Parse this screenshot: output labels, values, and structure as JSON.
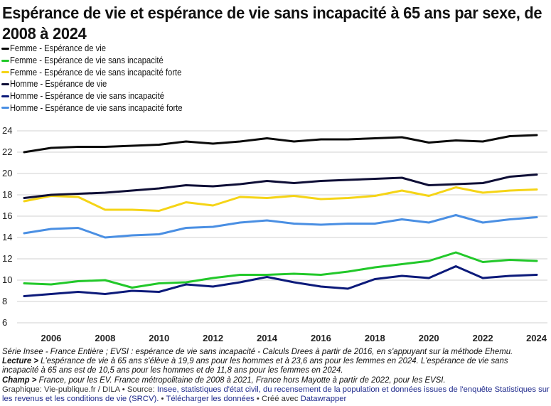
{
  "title": "Espérance de vie et espérance de vie sans incapacité à 65 ans par sexe, de 2008 à 2024",
  "legend": [
    {
      "label": "Femme - Espérance de vie",
      "color": "#0b0b0b"
    },
    {
      "label": "Femme - Espérance de vie sans incapacité",
      "color": "#22c82a"
    },
    {
      "label": "Femme - Espérance de vie sans incapacité forte",
      "color": "#f5d416"
    },
    {
      "label": "Homme - Espérance de vie",
      "color": "#0e0e36"
    },
    {
      "label": "Homme - Espérance de vie sans incapacité",
      "color": "#0c1a7a"
    },
    {
      "label": "Homme - Espérance de vie sans incapacité forte",
      "color": "#4a8fe3"
    }
  ],
  "chart_data": {
    "type": "line",
    "title": "Espérance de vie et espérance de vie sans incapacité à 65 ans par sexe, de 2008 à 2024",
    "xlabel": "",
    "ylabel": "",
    "x": [
      2005,
      2006,
      2007,
      2008,
      2009,
      2010,
      2011,
      2012,
      2013,
      2014,
      2015,
      2016,
      2017,
      2018,
      2019,
      2020,
      2021,
      2022,
      2023,
      2024
    ],
    "xticks": [
      "2006",
      "2008",
      "2010",
      "2012",
      "2014",
      "2016",
      "2018",
      "2020",
      "2022",
      "2024"
    ],
    "xtick_values": [
      2006,
      2008,
      2010,
      2012,
      2014,
      2016,
      2018,
      2020,
      2022,
      2024
    ],
    "yticks": [
      "24",
      "22",
      "20",
      "18",
      "16",
      "14",
      "12",
      "10",
      "8",
      "6"
    ],
    "ytick_values": [
      24,
      22,
      20,
      18,
      16,
      14,
      12,
      10,
      8,
      6
    ],
    "ylim": [
      6,
      24
    ],
    "xlim": [
      2005,
      2024
    ],
    "grid": true,
    "legend_position": "top-left",
    "series": [
      {
        "name": "Femme - Espérance de vie",
        "color": "#0b0b0b",
        "values": [
          22.0,
          22.4,
          22.5,
          22.5,
          22.6,
          22.7,
          23.0,
          22.8,
          23.0,
          23.3,
          23.0,
          23.2,
          23.2,
          23.3,
          23.4,
          22.9,
          23.1,
          23.0,
          23.5,
          23.6
        ]
      },
      {
        "name": "Femme - Espérance de vie sans incapacité",
        "color": "#22c82a",
        "values": [
          9.7,
          9.6,
          9.9,
          10.0,
          9.3,
          9.7,
          9.8,
          10.2,
          10.5,
          10.5,
          10.6,
          10.5,
          10.8,
          11.2,
          11.5,
          11.8,
          12.6,
          11.7,
          11.9,
          11.8
        ]
      },
      {
        "name": "Femme - Espérance de vie sans incapacité forte",
        "color": "#f5d416",
        "values": [
          17.4,
          17.9,
          17.8,
          16.6,
          16.6,
          16.5,
          17.3,
          17.0,
          17.8,
          17.7,
          17.9,
          17.6,
          17.7,
          17.9,
          18.4,
          17.9,
          18.7,
          18.2,
          18.4,
          18.5
        ]
      },
      {
        "name": "Homme - Espérance de vie",
        "color": "#0e0e36",
        "values": [
          17.7,
          18.0,
          18.1,
          18.2,
          18.4,
          18.6,
          18.9,
          18.8,
          19.0,
          19.3,
          19.1,
          19.3,
          19.4,
          19.5,
          19.6,
          18.9,
          19.0,
          19.1,
          19.7,
          19.9
        ]
      },
      {
        "name": "Homme - Espérance de vie sans incapacité",
        "color": "#0c1a7a",
        "values": [
          8.5,
          8.7,
          8.9,
          8.7,
          9.0,
          8.9,
          9.6,
          9.4,
          9.8,
          10.3,
          9.8,
          9.4,
          9.2,
          10.1,
          10.4,
          10.2,
          11.3,
          10.2,
          10.4,
          10.5
        ]
      },
      {
        "name": "Homme - Espérance de vie sans incapacité forte",
        "color": "#4a8fe3",
        "values": [
          14.4,
          14.8,
          14.9,
          14.0,
          14.2,
          14.3,
          14.9,
          15.0,
          15.4,
          15.6,
          15.3,
          15.2,
          15.3,
          15.3,
          15.7,
          15.4,
          16.1,
          15.4,
          15.7,
          15.9
        ]
      }
    ]
  },
  "footer": {
    "serie_note": "Série Insee - France Entière ; EVSI : espérance de vie sans incapacité - Calculs Drees à partir de 2016, en s'appuyant sur la méthode Ehemu.",
    "lecture_label": "Lecture >",
    "lecture_text": " L'espérance de vie à 65 ans s'élève à 19,9 ans pour les hommes et à 23,6 ans pour les femmes en 2024. L'espérance de vie sans",
    "lecture_text_2": "incapacité à 65 ans est de 10,5 ans pour les hommes et de 11,8 ans pour les femmes en 2024.",
    "champ_label": "Champ >",
    "champ_text": " France, pour les EV. France métropolitaine de 2008 à 2021, France hors Mayotte à partir de 2022, pour les EVSI.",
    "credits_prefix": "Graphique: Vie-publique.fr / DILA • Source: ",
    "source_link": "Insee, statistiques d'état civil, du recensement de la population et données issues de l'enquête Statistiques sur les revenus et les conditions de vie (SRCV).",
    "sep1": " • ",
    "download_link": "Télécharger les données",
    "sep2": " • Créé avec ",
    "datawrapper_link": "Datawrapper"
  }
}
